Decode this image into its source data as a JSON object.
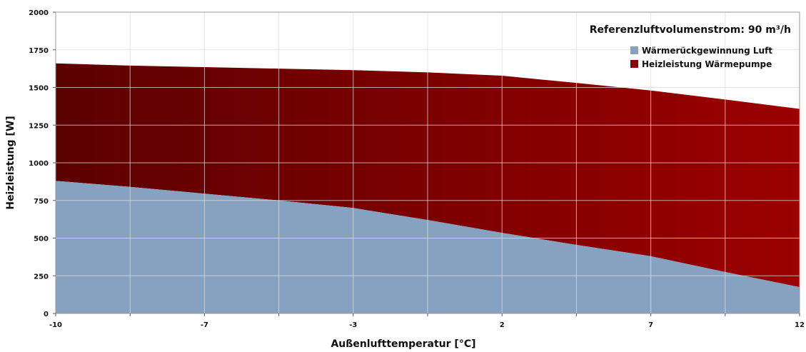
{
  "chart_data": {
    "type": "area",
    "stacked": true,
    "xlabel": "Außenlufttemperatur [°C]",
    "ylabel": "Heizleistung [W]",
    "annotation": "Referenzluftvolumenstrom: 90 m³/h",
    "x_ticks": [
      "-10",
      "-7",
      "-3",
      "2",
      "7",
      "12"
    ],
    "y_ticks": [
      "0",
      "250",
      "500",
      "750",
      "1000",
      "1250",
      "1500",
      "1750",
      "2000"
    ],
    "ylim": [
      0,
      2000
    ],
    "xlim": [
      0,
      10
    ],
    "grid": true,
    "legend_position": "top-right",
    "x": [
      0,
      1,
      2,
      3,
      4,
      5,
      6,
      7,
      8,
      9,
      10
    ],
    "series": [
      {
        "name": "Wärmerückgewinnung Luft",
        "color": "#87a2c0",
        "values": [
          880,
          840,
          795,
          750,
          700,
          620,
          535,
          455,
          380,
          275,
          175
        ]
      },
      {
        "name": "Heizleistung Wärmepumpe",
        "color": "#8b0000",
        "values": [
          780,
          805,
          840,
          875,
          915,
          980,
          1043,
          1075,
          1100,
          1145,
          1183
        ]
      }
    ]
  }
}
